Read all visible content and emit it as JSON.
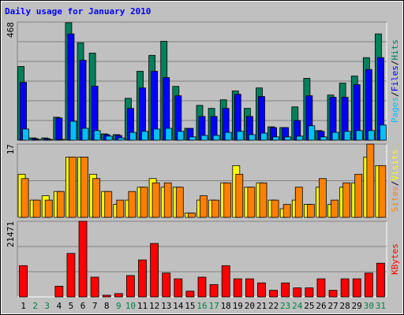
{
  "title": "Daily usage for January 2010",
  "categories": [
    "1",
    "2",
    "3",
    "4",
    "5",
    "6",
    "7",
    "8",
    "9",
    "10",
    "11",
    "12",
    "13",
    "14",
    "15",
    "16",
    "17",
    "18",
    "19",
    "20",
    "21",
    "22",
    "23",
    "24",
    "25",
    "26",
    "27",
    "28",
    "29",
    "30",
    "31"
  ],
  "category_colors": [
    "#000000",
    "#008040",
    "#008040",
    "#000000",
    "#000000",
    "#000000",
    "#000000",
    "#000000",
    "#008040",
    "#008040",
    "#000000",
    "#000000",
    "#000000",
    "#000000",
    "#000000",
    "#008040",
    "#008040",
    "#000000",
    "#000000",
    "#000000",
    "#000000",
    "#000000",
    "#008040",
    "#008040",
    "#000000",
    "#000000",
    "#000000",
    "#000000",
    "#000000",
    "#008040",
    "#008040"
  ],
  "legend_separator": "/",
  "chart_data": [
    {
      "type": "bar",
      "ylim": [
        0,
        468
      ],
      "yticks": [
        468
      ],
      "gridlines": [
        78,
        156,
        234,
        312,
        390
      ],
      "series": [
        {
          "name": "Hits",
          "color": "#00805c",
          "values": [
            292,
            9,
            9,
            91,
            465,
            386,
            345,
            25,
            22,
            166,
            273,
            336,
            392,
            213,
            47,
            138,
            126,
            160,
            195,
            126,
            207,
            53,
            50,
            132,
            245,
            38,
            179,
            226,
            254,
            327,
            421
          ]
        },
        {
          "name": "Files",
          "color": "#0000ff",
          "values": [
            229,
            6,
            6,
            88,
            421,
            317,
            214,
            22,
            19,
            126,
            207,
            273,
            248,
            176,
            47,
            94,
            94,
            126,
            182,
            94,
            173,
            50,
            50,
            78,
            176,
            35,
            170,
            170,
            220,
            280,
            327
          ]
        },
        {
          "name": "Pages",
          "color": "#00c0ff",
          "values": [
            44,
            3,
            3,
            3,
            75,
            47,
            38,
            16,
            9,
            31,
            35,
            44,
            47,
            35,
            13,
            19,
            19,
            31,
            35,
            22,
            28,
            13,
            13,
            16,
            57,
            13,
            31,
            35,
            38,
            38,
            60
          ]
        }
      ]
    },
    {
      "type": "bar",
      "ylim": [
        0,
        17
      ],
      "yticks": [
        17
      ],
      "gridlines": [
        8.5
      ],
      "series": [
        {
          "name": "Visits",
          "color": "#ffff00",
          "values": [
            10,
            4,
            5,
            6,
            14,
            14,
            10,
            6,
            3,
            4,
            7,
            9,
            7,
            7,
            1,
            4,
            4,
            8,
            12,
            7,
            8,
            4,
            2,
            4,
            3,
            7,
            3,
            7,
            8,
            14,
            12
          ]
        },
        {
          "name": "Sites",
          "color": "#ff8000",
          "values": [
            9,
            4,
            4,
            6,
            14,
            14,
            9,
            6,
            4,
            6,
            7,
            8,
            8,
            7,
            1,
            5,
            4,
            8,
            10,
            7,
            8,
            4,
            3,
            7,
            3,
            9,
            4,
            8,
            10,
            17,
            12
          ]
        }
      ]
    },
    {
      "type": "bar",
      "ylim": [
        0,
        21471
      ],
      "yticks": [
        21471
      ],
      "gridlines": [
        7157,
        14314
      ],
      "series": [
        {
          "name": "KBytes",
          "color": "#ff0000",
          "values": [
            8870,
            0,
            0,
            3030,
            12350,
            21471,
            5600,
            470,
            930,
            6060,
            10500,
            15170,
            6770,
            5130,
            1630,
            5600,
            3500,
            8870,
            5130,
            5130,
            3970,
            1870,
            3970,
            2570,
            2570,
            5130,
            1870,
            5130,
            5130,
            6770,
            9570
          ]
        }
      ]
    }
  ]
}
